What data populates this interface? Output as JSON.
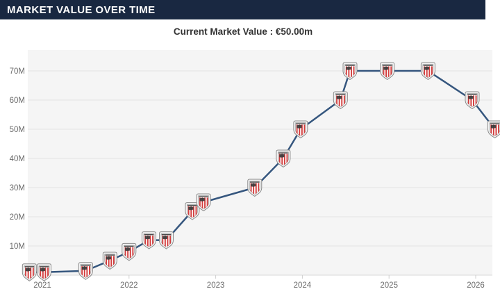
{
  "header": {
    "title": "MARKET VALUE OVER TIME"
  },
  "subtitle": {
    "text": "Current Market Value : €50.00m"
  },
  "chart_data": {
    "type": "line",
    "title": "Market Value Over Time",
    "x": [
      2020.85,
      2021.02,
      2021.5,
      2021.78,
      2022.0,
      2022.23,
      2022.43,
      2022.73,
      2022.86,
      2023.45,
      2023.78,
      2023.98,
      2024.44,
      2024.55,
      2024.98,
      2025.45,
      2025.96,
      2026.22
    ],
    "values": [
      1,
      1,
      1.5,
      5,
      8,
      12,
      12,
      22,
      25,
      30,
      40,
      50,
      60,
      70,
      70,
      70,
      60,
      50
    ],
    "unit": "million EUR",
    "ytick_values": [
      10,
      20,
      30,
      40,
      50,
      60,
      70
    ],
    "ytick_labels": [
      "10M",
      "20M",
      "30M",
      "40M",
      "50M",
      "60M",
      "70M"
    ],
    "xtick_values": [
      2021,
      2022,
      2023,
      2024,
      2025,
      2026
    ],
    "xtick_labels": [
      "2021",
      "2022",
      "2023",
      "2024",
      "2025",
      "2026"
    ],
    "ylim": [
      0,
      77
    ],
    "xlim": [
      2020.83,
      2026.3
    ],
    "grid": true,
    "legend": "none",
    "marker_icon": "athletic-club-crest",
    "colors": {
      "line": "#35567e",
      "plot_bg": "#f5f5f5",
      "gridline": "#e2e2e2",
      "axis_line": "#d8d8d8",
      "tick_text": "#6b6b6b",
      "crest_red": "#d23c3c",
      "crest_dark": "#3b3b3b",
      "header_bg": "#192841"
    }
  }
}
